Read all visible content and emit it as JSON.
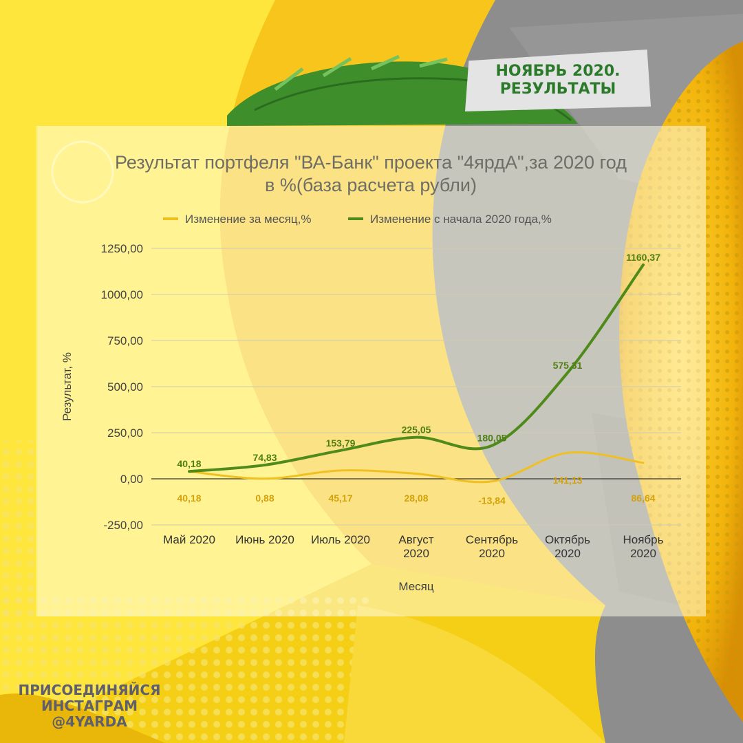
{
  "badge": {
    "line1": "НОЯБРЬ 2020.",
    "line2": "РЕЗУЛЬТАТЫ"
  },
  "footer": {
    "line1": "ПРИСОЕДИНЯЙСЯ",
    "line2": "ИНСТАГРАМ",
    "line3": "@4YARDA"
  },
  "colors": {
    "monthly": "#f0c020",
    "cumulative": "#4f8a1a",
    "monthly_label": "#d4a20a",
    "cumulative_label": "#4f7f12"
  },
  "chart_data": {
    "type": "line",
    "title_lines": [
      "Результат портфеля \"ВА-Банк\" проекта \"4ярдА\",за 2020 год",
      "в %(база расчета рубли)"
    ],
    "xlabel": "Месяц",
    "ylabel": "Результат, %",
    "legend_position": "top",
    "grid": true,
    "ylim": [
      -250,
      1250
    ],
    "yticks": [
      "-250,00",
      "0,00",
      "250,00",
      "500,00",
      "750,00",
      "1000,00",
      "1250,00"
    ],
    "categories": [
      [
        "Май 2020"
      ],
      [
        "Июнь 2020"
      ],
      [
        "Июль 2020"
      ],
      [
        "Август",
        "2020"
      ],
      [
        "Сентябрь",
        "2020"
      ],
      [
        "Октябрь",
        "2020"
      ],
      [
        "Ноябрь",
        "2020"
      ]
    ],
    "series": [
      {
        "name": "Изменение за месяц,%",
        "values": [
          40.18,
          0.88,
          45.17,
          28.08,
          -13.84,
          141.13,
          86.64
        ],
        "labels": [
          "40,18",
          "0,88",
          "45,17",
          "28,08",
          "-13,84",
          "141,13",
          "86,64"
        ]
      },
      {
        "name": "Изменение с начала 2020 года,%",
        "values": [
          40.18,
          74.83,
          153.79,
          225.05,
          180.05,
          575.31,
          1160.37
        ],
        "labels": [
          "40,18",
          "74,83",
          "153,79",
          "225,05",
          "180,05",
          "575,31",
          "1160,37"
        ]
      }
    ]
  }
}
